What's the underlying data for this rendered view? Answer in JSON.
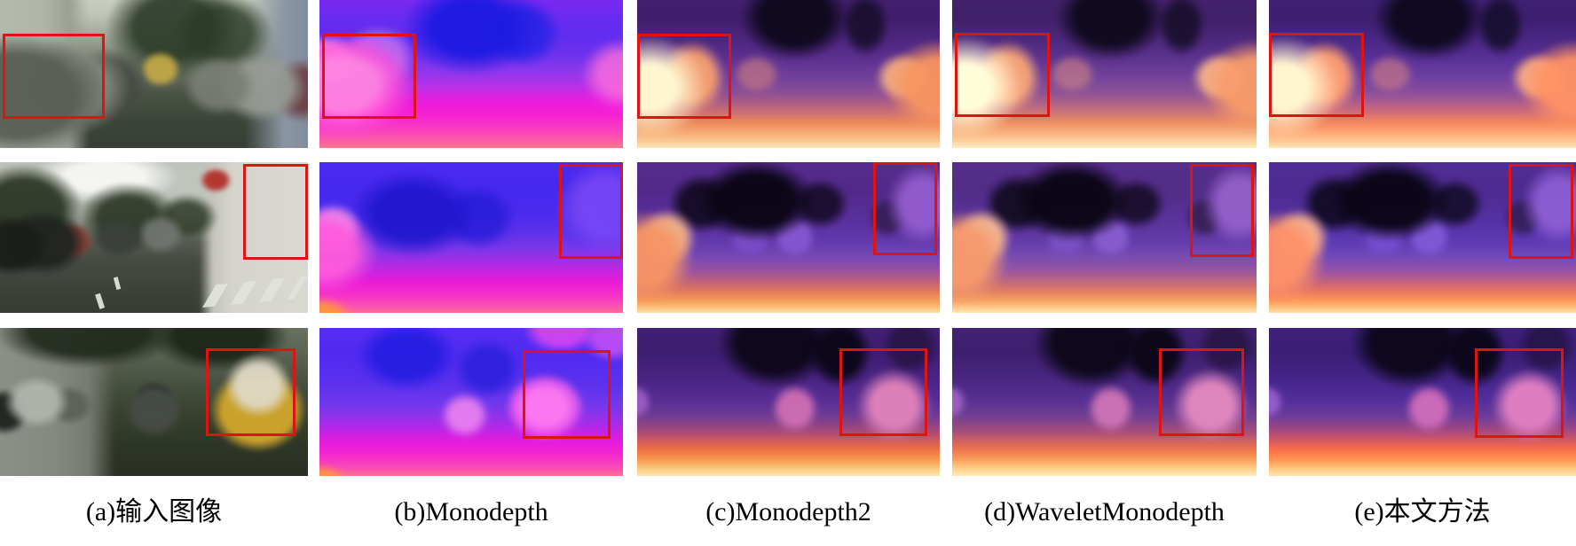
{
  "figure": {
    "kind": "depth-estimation-qualitative-comparison",
    "colors": {
      "highlight_box": "#de1312",
      "background": "#ffffff"
    },
    "colormaps": {
      "monodepth_column": "blue-violet to magenta to orange (near = pink/orange, far = blue)",
      "other_columns": "magma: dark purple (far) to salmon/cream (near)"
    },
    "columns": [
      {
        "id": "a",
        "caption": "(a)输入图像",
        "kind": "input-photo"
      },
      {
        "id": "b",
        "caption": "(b)Monodepth",
        "kind": "depth-map"
      },
      {
        "id": "c",
        "caption": "(c)Monodepth2",
        "kind": "depth-map"
      },
      {
        "id": "d",
        "caption": "(d)WaveletMonodepth",
        "kind": "depth-map"
      },
      {
        "id": "e",
        "caption": "(e)本文方法",
        "kind": "depth-map"
      }
    ],
    "rows": [
      {
        "id": "row1",
        "scene": "residential street, cars parked both sides, cobblestone road",
        "highlight": {
          "a": [
            1,
            23,
            33,
            57
          ],
          "b": [
            1,
            23,
            31,
            57
          ],
          "c": [
            0,
            23,
            31,
            57
          ],
          "d": [
            1,
            22,
            31,
            57
          ],
          "e": [
            0,
            22,
            31,
            57
          ]
        }
      },
      {
        "id": "row2",
        "scene": "main road with crosswalk, white car-dealer building on right",
        "highlight": {
          "a": [
            79,
            1,
            21,
            64
          ],
          "b": [
            79,
            1,
            21,
            63
          ],
          "c": [
            78,
            0,
            21,
            62
          ],
          "d": [
            78,
            1,
            21,
            62
          ],
          "e": [
            78,
            1,
            21,
            63
          ]
        }
      },
      {
        "id": "row3",
        "scene": "shaded street, yellow van parked on right",
        "highlight": {
          "a": [
            67,
            14,
            29,
            59
          ],
          "b": [
            67,
            15,
            29,
            60
          ],
          "c": [
            67,
            14,
            29,
            59
          ],
          "d": [
            68,
            14,
            28,
            59
          ],
          "e": [
            67,
            14,
            29,
            60
          ]
        }
      }
    ]
  }
}
